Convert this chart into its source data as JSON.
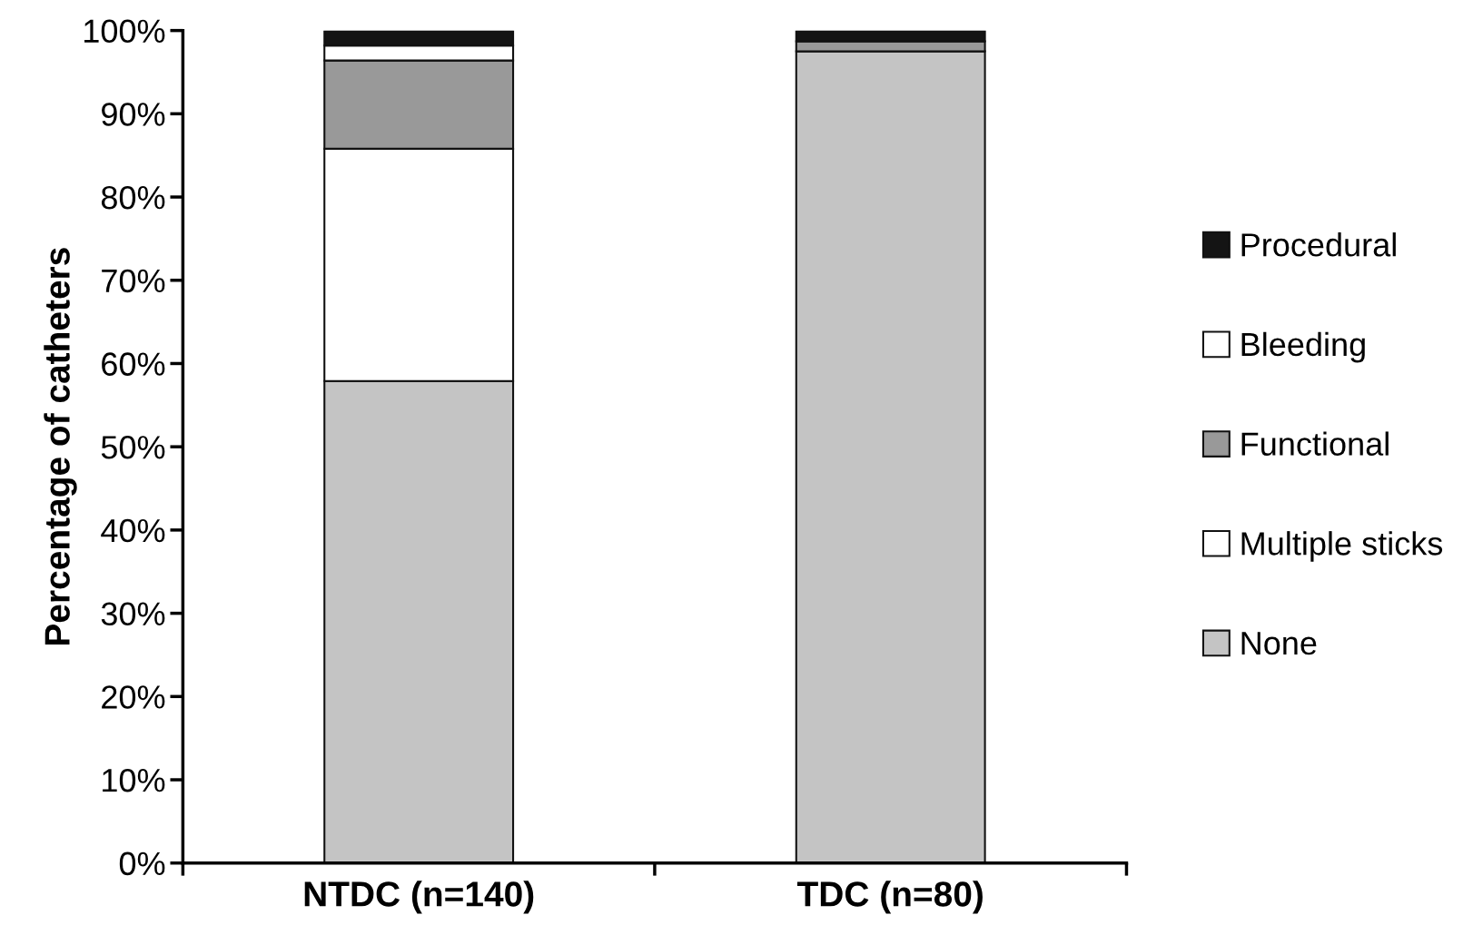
{
  "chart_data": {
    "type": "bar",
    "stacked": true,
    "ylabel": "Percentage of catheters",
    "categories": [
      "NTDC (n=140)",
      "TDC (n=80)"
    ],
    "series": [
      {
        "name": "None",
        "color": "#c4c4c4",
        "values": [
          57.9,
          97.5
        ]
      },
      {
        "name": "Multiple sticks",
        "color": "#ffffff",
        "values": [
          27.9,
          0
        ]
      },
      {
        "name": "Functional",
        "color": "#999999",
        "values": [
          10.6,
          1.2
        ]
      },
      {
        "name": "Bleeding",
        "color": "#ffffff",
        "values": [
          1.8,
          0
        ]
      },
      {
        "name": "Procedural",
        "color": "#141414",
        "values": [
          1.8,
          1.3
        ]
      }
    ],
    "ylim": [
      0,
      100
    ],
    "yticks": [
      {
        "value": 0,
        "label": "0%"
      },
      {
        "value": 10,
        "label": "10%"
      },
      {
        "value": 20,
        "label": "20%"
      },
      {
        "value": 30,
        "label": "30%"
      },
      {
        "value": 40,
        "label": "40%"
      },
      {
        "value": 50,
        "label": "50%"
      },
      {
        "value": 60,
        "label": "60%"
      },
      {
        "value": 70,
        "label": "70%"
      },
      {
        "value": 80,
        "label": "80%"
      },
      {
        "value": 90,
        "label": "90%"
      },
      {
        "value": 100,
        "label": "100%"
      }
    ],
    "grid": false,
    "legend": "right"
  }
}
